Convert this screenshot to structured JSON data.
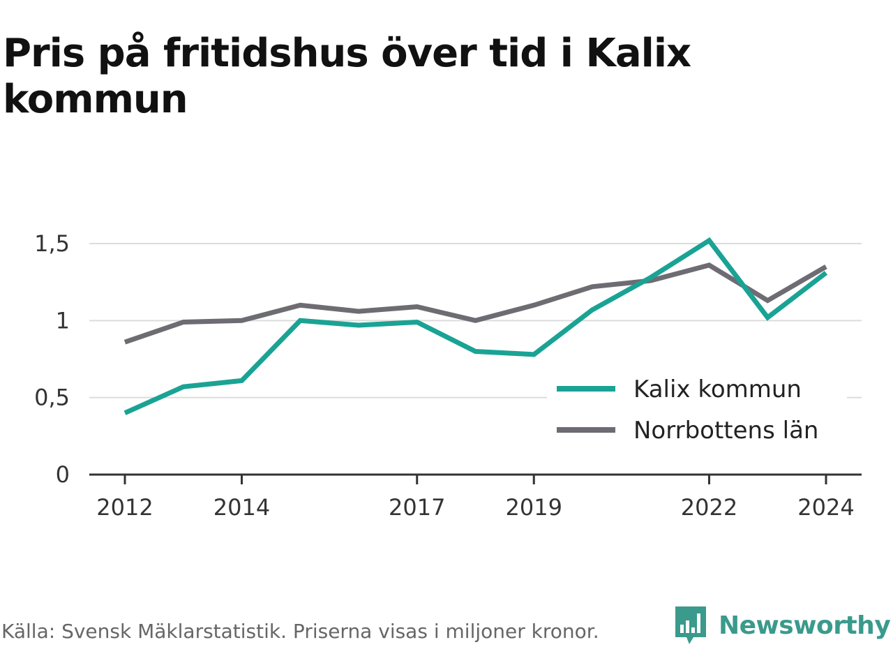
{
  "title": "Pris på fritidshus över tid i Kalix kommun",
  "source": "Källa: Svensk Mäklarstatistik. Priserna visas i miljoner kronor.",
  "brand": "Newsworthy",
  "colors": {
    "kalix": "#1aa394",
    "norrbotten": "#6e6c72",
    "grid": "#dcdcdc",
    "brand": "#3a9a8c"
  },
  "chart_data": {
    "type": "line",
    "title": "Pris på fritidshus över tid i Kalix kommun",
    "xlabel": "",
    "ylabel": "",
    "x": [
      2012,
      2013,
      2014,
      2015,
      2016,
      2017,
      2018,
      2019,
      2020,
      2021,
      2022,
      2023,
      2024
    ],
    "x_ticks": [
      "2012",
      "2014",
      "2017",
      "2019",
      "2022",
      "2024"
    ],
    "y_ticks": [
      "0",
      "0,5",
      "1",
      "1,5"
    ],
    "ylim": [
      0,
      1.5
    ],
    "grid": true,
    "legend_position": "bottom-right",
    "series": [
      {
        "name": "Kalix kommun",
        "color": "#1aa394",
        "values": [
          0.4,
          0.57,
          0.61,
          1.0,
          0.97,
          0.99,
          0.8,
          0.78,
          1.07,
          1.28,
          1.52,
          1.02,
          1.31
        ]
      },
      {
        "name": "Norrbottens län",
        "color": "#6e6c72",
        "values": [
          0.86,
          0.99,
          1.0,
          1.1,
          1.06,
          1.09,
          1.0,
          1.1,
          1.22,
          1.26,
          1.36,
          1.13,
          1.35
        ]
      }
    ]
  }
}
